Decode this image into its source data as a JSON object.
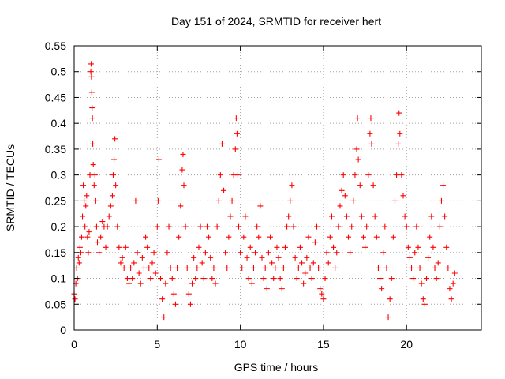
{
  "chart_data": {
    "type": "scatter",
    "title": "Day 151 of 2024, SRMTID for receiver hert",
    "xlabel": "GPS time / hours",
    "ylabel": "SRMTID / TECUs",
    "xlim": [
      0,
      24.5
    ],
    "ylim": [
      0,
      0.55
    ],
    "xticks": [
      0,
      5,
      10,
      15,
      20
    ],
    "yticks": [
      0,
      0.05,
      0.1,
      0.15,
      0.2,
      0.25,
      0.3,
      0.35,
      0.4,
      0.45,
      0.5,
      0.55
    ],
    "ytick_labels": [
      "0",
      "0.05",
      "0.1",
      "0.15",
      "0.2",
      "0.25",
      "0.3",
      "0.35",
      "0.4",
      "0.45",
      "0.5",
      "0.55"
    ],
    "grid": true,
    "marker": "+",
    "color": "#ff0000",
    "series": [
      {
        "name": "SRMTID",
        "points": [
          [
            0.0,
            0.07
          ],
          [
            0.05,
            0.06
          ],
          [
            0.1,
            0.09
          ],
          [
            0.15,
            0.12
          ],
          [
            0.2,
            0.1
          ],
          [
            0.25,
            0.14
          ],
          [
            0.3,
            0.13
          ],
          [
            0.35,
            0.16
          ],
          [
            0.4,
            0.15
          ],
          [
            0.45,
            0.18
          ],
          [
            0.5,
            0.22
          ],
          [
            0.55,
            0.28
          ],
          [
            0.6,
            0.25
          ],
          [
            0.65,
            0.2
          ],
          [
            0.7,
            0.24
          ],
          [
            0.75,
            0.26
          ],
          [
            0.8,
            0.18
          ],
          [
            0.85,
            0.15
          ],
          [
            0.9,
            0.19
          ],
          [
            0.95,
            0.3
          ],
          [
            1.0,
            0.5
          ],
          [
            1.02,
            0.515
          ],
          [
            1.04,
            0.49
          ],
          [
            1.06,
            0.46
          ],
          [
            1.08,
            0.43
          ],
          [
            1.1,
            0.41
          ],
          [
            1.12,
            0.36
          ],
          [
            1.15,
            0.32
          ],
          [
            1.2,
            0.28
          ],
          [
            1.25,
            0.3
          ],
          [
            1.3,
            0.25
          ],
          [
            1.35,
            0.2
          ],
          [
            1.4,
            0.17
          ],
          [
            1.5,
            0.15
          ],
          [
            1.6,
            0.18
          ],
          [
            1.7,
            0.21
          ],
          [
            1.8,
            0.2
          ],
          [
            1.9,
            0.16
          ],
          [
            2.0,
            0.2
          ],
          [
            2.1,
            0.22
          ],
          [
            2.2,
            0.24
          ],
          [
            2.3,
            0.26
          ],
          [
            2.35,
            0.3
          ],
          [
            2.4,
            0.33
          ],
          [
            2.45,
            0.37
          ],
          [
            2.5,
            0.28
          ],
          [
            2.6,
            0.2
          ],
          [
            2.7,
            0.16
          ],
          [
            2.8,
            0.13
          ],
          [
            2.9,
            0.14
          ],
          [
            3.0,
            0.12
          ],
          [
            3.1,
            0.16
          ],
          [
            3.2,
            0.1
          ],
          [
            3.3,
            0.09
          ],
          [
            3.4,
            0.12
          ],
          [
            3.5,
            0.1
          ],
          [
            3.6,
            0.13
          ],
          [
            3.7,
            0.25
          ],
          [
            3.8,
            0.15
          ],
          [
            3.9,
            0.11
          ],
          [
            4.0,
            0.09
          ],
          [
            4.1,
            0.14
          ],
          [
            4.2,
            0.12
          ],
          [
            4.3,
            0.18
          ],
          [
            4.4,
            0.16
          ],
          [
            4.5,
            0.12
          ],
          [
            4.6,
            0.1
          ],
          [
            4.7,
            0.13
          ],
          [
            4.8,
            0.15
          ],
          [
            4.9,
            0.11
          ],
          [
            5.0,
            0.2
          ],
          [
            5.05,
            0.25
          ],
          [
            5.1,
            0.33
          ],
          [
            5.2,
            0.1
          ],
          [
            5.3,
            0.06
          ],
          [
            5.4,
            0.025
          ],
          [
            5.5,
            0.09
          ],
          [
            5.6,
            0.15
          ],
          [
            5.7,
            0.2
          ],
          [
            5.8,
            0.12
          ],
          [
            5.9,
            0.1
          ],
          [
            6.0,
            0.07
          ],
          [
            6.1,
            0.05
          ],
          [
            6.2,
            0.12
          ],
          [
            6.3,
            0.18
          ],
          [
            6.4,
            0.24
          ],
          [
            6.5,
            0.31
          ],
          [
            6.55,
            0.34
          ],
          [
            6.6,
            0.28
          ],
          [
            6.7,
            0.2
          ],
          [
            6.8,
            0.12
          ],
          [
            6.9,
            0.07
          ],
          [
            7.0,
            0.05
          ],
          [
            7.1,
            0.09
          ],
          [
            7.2,
            0.14
          ],
          [
            7.3,
            0.1
          ],
          [
            7.4,
            0.12
          ],
          [
            7.5,
            0.16
          ],
          [
            7.6,
            0.2
          ],
          [
            7.7,
            0.13
          ],
          [
            7.8,
            0.1
          ],
          [
            7.9,
            0.15
          ],
          [
            8.0,
            0.2
          ],
          [
            8.1,
            0.18
          ],
          [
            8.2,
            0.14
          ],
          [
            8.3,
            0.1
          ],
          [
            8.4,
            0.12
          ],
          [
            8.5,
            0.09
          ],
          [
            8.6,
            0.2
          ],
          [
            8.7,
            0.25
          ],
          [
            8.8,
            0.3
          ],
          [
            8.9,
            0.36
          ],
          [
            9.0,
            0.27
          ],
          [
            9.1,
            0.15
          ],
          [
            9.2,
            0.12
          ],
          [
            9.3,
            0.18
          ],
          [
            9.4,
            0.22
          ],
          [
            9.5,
            0.25
          ],
          [
            9.6,
            0.3
          ],
          [
            9.7,
            0.35
          ],
          [
            9.75,
            0.41
          ],
          [
            9.8,
            0.38
          ],
          [
            9.85,
            0.3
          ],
          [
            9.9,
            0.2
          ],
          [
            10.0,
            0.15
          ],
          [
            10.1,
            0.12
          ],
          [
            10.2,
            0.18
          ],
          [
            10.3,
            0.22
          ],
          [
            10.4,
            0.14
          ],
          [
            10.5,
            0.1
          ],
          [
            10.6,
            0.16
          ],
          [
            10.7,
            0.09
          ],
          [
            10.8,
            0.12
          ],
          [
            10.9,
            0.15
          ],
          [
            11.0,
            0.2
          ],
          [
            11.1,
            0.18
          ],
          [
            11.2,
            0.24
          ],
          [
            11.3,
            0.14
          ],
          [
            11.4,
            0.1
          ],
          [
            11.5,
            0.12
          ],
          [
            11.6,
            0.08
          ],
          [
            11.7,
            0.15
          ],
          [
            11.8,
            0.18
          ],
          [
            11.9,
            0.13
          ],
          [
            12.0,
            0.1
          ],
          [
            12.1,
            0.12
          ],
          [
            12.2,
            0.16
          ],
          [
            12.3,
            0.14
          ],
          [
            12.4,
            0.1
          ],
          [
            12.5,
            0.08
          ],
          [
            12.6,
            0.12
          ],
          [
            12.7,
            0.16
          ],
          [
            12.8,
            0.2
          ],
          [
            12.9,
            0.22
          ],
          [
            13.0,
            0.25
          ],
          [
            13.1,
            0.28
          ],
          [
            13.2,
            0.2
          ],
          [
            13.3,
            0.14
          ],
          [
            13.4,
            0.1
          ],
          [
            13.5,
            0.12
          ],
          [
            13.6,
            0.16
          ],
          [
            13.7,
            0.13
          ],
          [
            13.8,
            0.09
          ],
          [
            13.9,
            0.11
          ],
          [
            14.0,
            0.14
          ],
          [
            14.1,
            0.18
          ],
          [
            14.2,
            0.12
          ],
          [
            14.3,
            0.1
          ],
          [
            14.4,
            0.13
          ],
          [
            14.5,
            0.17
          ],
          [
            14.6,
            0.2
          ],
          [
            14.7,
            0.12
          ],
          [
            14.8,
            0.08
          ],
          [
            14.9,
            0.07
          ],
          [
            15.0,
            0.06
          ],
          [
            15.1,
            0.1
          ],
          [
            15.2,
            0.15
          ],
          [
            15.3,
            0.13
          ],
          [
            15.4,
            0.18
          ],
          [
            15.5,
            0.22
          ],
          [
            15.6,
            0.16
          ],
          [
            15.7,
            0.12
          ],
          [
            15.8,
            0.15
          ],
          [
            15.9,
            0.2
          ],
          [
            16.0,
            0.24
          ],
          [
            16.1,
            0.27
          ],
          [
            16.2,
            0.3
          ],
          [
            16.3,
            0.26
          ],
          [
            16.4,
            0.22
          ],
          [
            16.5,
            0.18
          ],
          [
            16.6,
            0.15
          ],
          [
            16.7,
            0.2
          ],
          [
            16.8,
            0.25
          ],
          [
            16.9,
            0.3
          ],
          [
            17.0,
            0.35
          ],
          [
            17.05,
            0.41
          ],
          [
            17.1,
            0.33
          ],
          [
            17.2,
            0.28
          ],
          [
            17.3,
            0.22
          ],
          [
            17.4,
            0.18
          ],
          [
            17.5,
            0.16
          ],
          [
            17.6,
            0.2
          ],
          [
            17.7,
            0.3
          ],
          [
            17.8,
            0.38
          ],
          [
            17.85,
            0.41
          ],
          [
            17.9,
            0.36
          ],
          [
            18.0,
            0.28
          ],
          [
            18.1,
            0.22
          ],
          [
            18.2,
            0.18
          ],
          [
            18.3,
            0.12
          ],
          [
            18.4,
            0.1
          ],
          [
            18.5,
            0.08
          ],
          [
            18.6,
            0.15
          ],
          [
            18.7,
            0.2
          ],
          [
            18.8,
            0.12
          ],
          [
            18.9,
            0.025
          ],
          [
            19.0,
            0.06
          ],
          [
            19.1,
            0.1
          ],
          [
            19.2,
            0.18
          ],
          [
            19.3,
            0.25
          ],
          [
            19.4,
            0.3
          ],
          [
            19.5,
            0.36
          ],
          [
            19.55,
            0.42
          ],
          [
            19.6,
            0.38
          ],
          [
            19.7,
            0.3
          ],
          [
            19.8,
            0.26
          ],
          [
            19.9,
            0.22
          ],
          [
            20.0,
            0.2
          ],
          [
            20.1,
            0.16
          ],
          [
            20.2,
            0.14
          ],
          [
            20.3,
            0.12
          ],
          [
            20.4,
            0.1
          ],
          [
            20.5,
            0.15
          ],
          [
            20.6,
            0.2
          ],
          [
            20.7,
            0.16
          ],
          [
            20.8,
            0.12
          ],
          [
            20.9,
            0.09
          ],
          [
            21.0,
            0.06
          ],
          [
            21.1,
            0.05
          ],
          [
            21.2,
            0.1
          ],
          [
            21.3,
            0.14
          ],
          [
            21.4,
            0.18
          ],
          [
            21.5,
            0.22
          ],
          [
            21.6,
            0.16
          ],
          [
            21.7,
            0.12
          ],
          [
            21.8,
            0.1
          ],
          [
            21.9,
            0.13
          ],
          [
            22.0,
            0.2
          ],
          [
            22.1,
            0.25
          ],
          [
            22.2,
            0.28
          ],
          [
            22.3,
            0.22
          ],
          [
            22.4,
            0.16
          ],
          [
            22.5,
            0.12
          ],
          [
            22.6,
            0.08
          ],
          [
            22.7,
            0.06
          ],
          [
            22.8,
            0.09
          ],
          [
            22.9,
            0.11
          ]
        ]
      }
    ]
  }
}
